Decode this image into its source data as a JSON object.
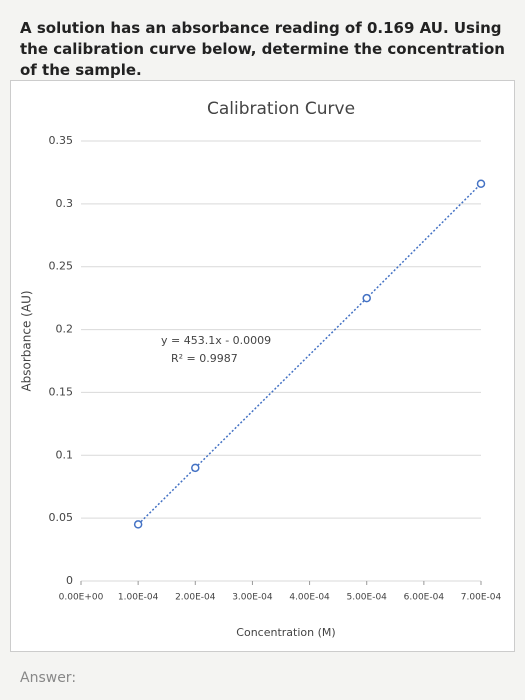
{
  "question": "A solution has an absorbance reading of 0.169 AU. Using the calibration curve below, determine the concentration of the sample.",
  "chart_data": {
    "type": "scatter",
    "title": "Calibration Curve",
    "x_label": "Concentration (M)",
    "y_label": "Absorbance (AU)",
    "x": [
      0.0001,
      0.0002,
      0.0005,
      0.0007
    ],
    "series": [
      {
        "color": "#4472c4",
        "values": [
          0.045,
          0.09,
          0.225,
          0.316
        ]
      }
    ],
    "annotations": [
      "y = 453.1x - 0.0009",
      "R² = 0.9987"
    ],
    "xlim": [
      0,
      0.0007
    ],
    "xticks": [
      {
        "value": 0,
        "label": "0.00E+00"
      },
      {
        "value": 0.0001,
        "label": "1.00E-04"
      },
      {
        "value": 0.0002,
        "label": "2.00E-04"
      },
      {
        "value": 0.0003,
        "label": "3.00E-04"
      },
      {
        "value": 0.0004,
        "label": "4.00E-04"
      },
      {
        "value": 0.0005,
        "label": "5.00E-04"
      },
      {
        "value": 0.0006,
        "label": "6.00E-04"
      },
      {
        "value": 0.0007,
        "label": "7.00E-04"
      }
    ],
    "ylim": [
      0,
      0.35
    ],
    "yticks": [
      0,
      0.05,
      0.1,
      0.15,
      0.2,
      0.25,
      0.3,
      0.35
    ],
    "grid": true
  },
  "answer_label": "Answer:"
}
